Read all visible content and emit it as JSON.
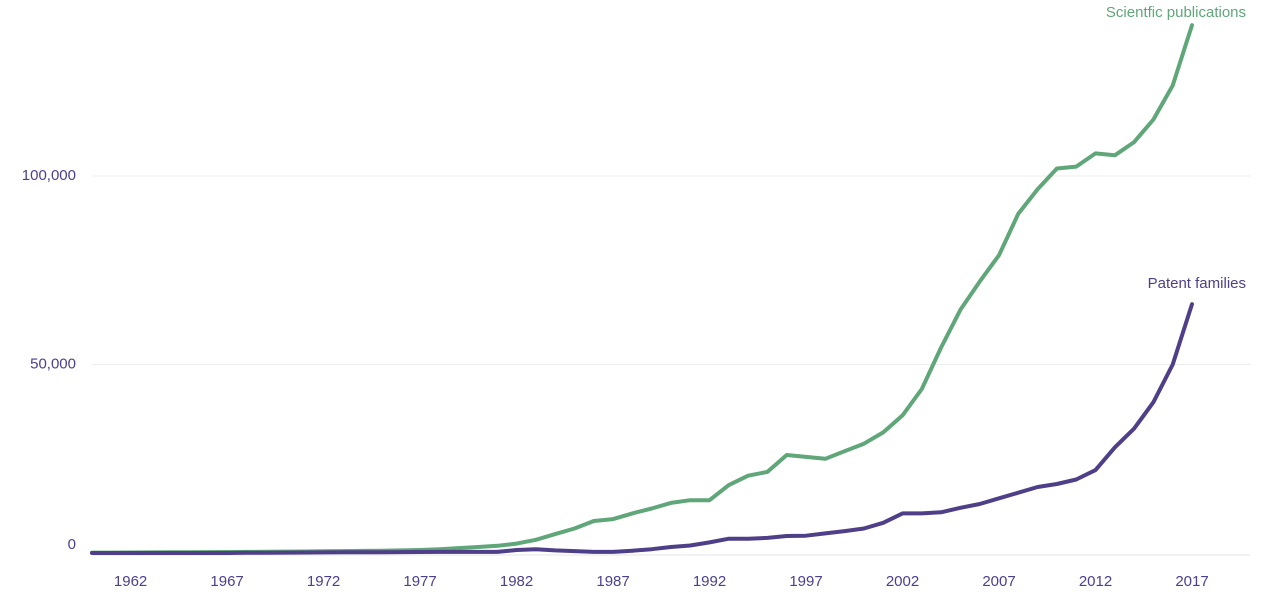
{
  "chart_data": {
    "type": "line",
    "title": "",
    "xlabel": "",
    "ylabel": "",
    "x": [
      1960,
      1961,
      1962,
      1963,
      1964,
      1965,
      1966,
      1967,
      1968,
      1969,
      1970,
      1971,
      1972,
      1973,
      1974,
      1975,
      1976,
      1977,
      1978,
      1979,
      1980,
      1981,
      1982,
      1983,
      1984,
      1985,
      1986,
      1987,
      1988,
      1989,
      1990,
      1991,
      1992,
      1993,
      1994,
      1995,
      1996,
      1997,
      1998,
      1999,
      2000,
      2001,
      2002,
      2003,
      2004,
      2005,
      2006,
      2007,
      2008,
      2009,
      2010,
      2011,
      2012,
      2013,
      2014,
      2015,
      2016,
      2017
    ],
    "x_ticks": [
      "1962",
      "1967",
      "1972",
      "1977",
      "1982",
      "1987",
      "1992",
      "1997",
      "2002",
      "2007",
      "2012",
      "2017"
    ],
    "y_ticks": [
      {
        "value": 0,
        "label": "0"
      },
      {
        "value": 50000,
        "label": "50,000"
      },
      {
        "value": 100000,
        "label": "100,000"
      }
    ],
    "ylim": [
      -2000,
      140000
    ],
    "grid": "horizontal",
    "legend": "inline labels at line ends",
    "series": [
      {
        "name": "Scientfic publications",
        "color": "#5fa678",
        "values": [
          100,
          100,
          120,
          150,
          180,
          200,
          230,
          260,
          300,
          330,
          360,
          400,
          450,
          500,
          550,
          600,
          700,
          800,
          1000,
          1300,
          1600,
          1900,
          2500,
          3500,
          5000,
          6500,
          8500,
          9000,
          10500,
          11800,
          13300,
          14000,
          14000,
          18000,
          20500,
          21500,
          26000,
          25500,
          25000,
          27000,
          29000,
          32000,
          36500,
          43500,
          54500,
          64500,
          72000,
          79000,
          90000,
          96500,
          102000,
          102500,
          106000,
          105500,
          109000,
          115000,
          124000,
          140000
        ]
      },
      {
        "name": "Patent families",
        "color": "#4f3f88",
        "values": [
          0,
          0,
          0,
          0,
          0,
          0,
          0,
          0,
          50,
          80,
          100,
          120,
          150,
          180,
          200,
          220,
          250,
          270,
          300,
          300,
          300,
          300,
          800,
          1000,
          700,
          500,
          300,
          300,
          600,
          1000,
          1600,
          2000,
          2800,
          3800,
          3800,
          4000,
          4500,
          4600,
          5200,
          5800,
          6500,
          8000,
          10500,
          10500,
          10800,
          12000,
          13000,
          14500,
          16000,
          17500,
          18300,
          19500,
          22000,
          28000,
          33000,
          40000,
          50000,
          66000
        ]
      }
    ]
  }
}
